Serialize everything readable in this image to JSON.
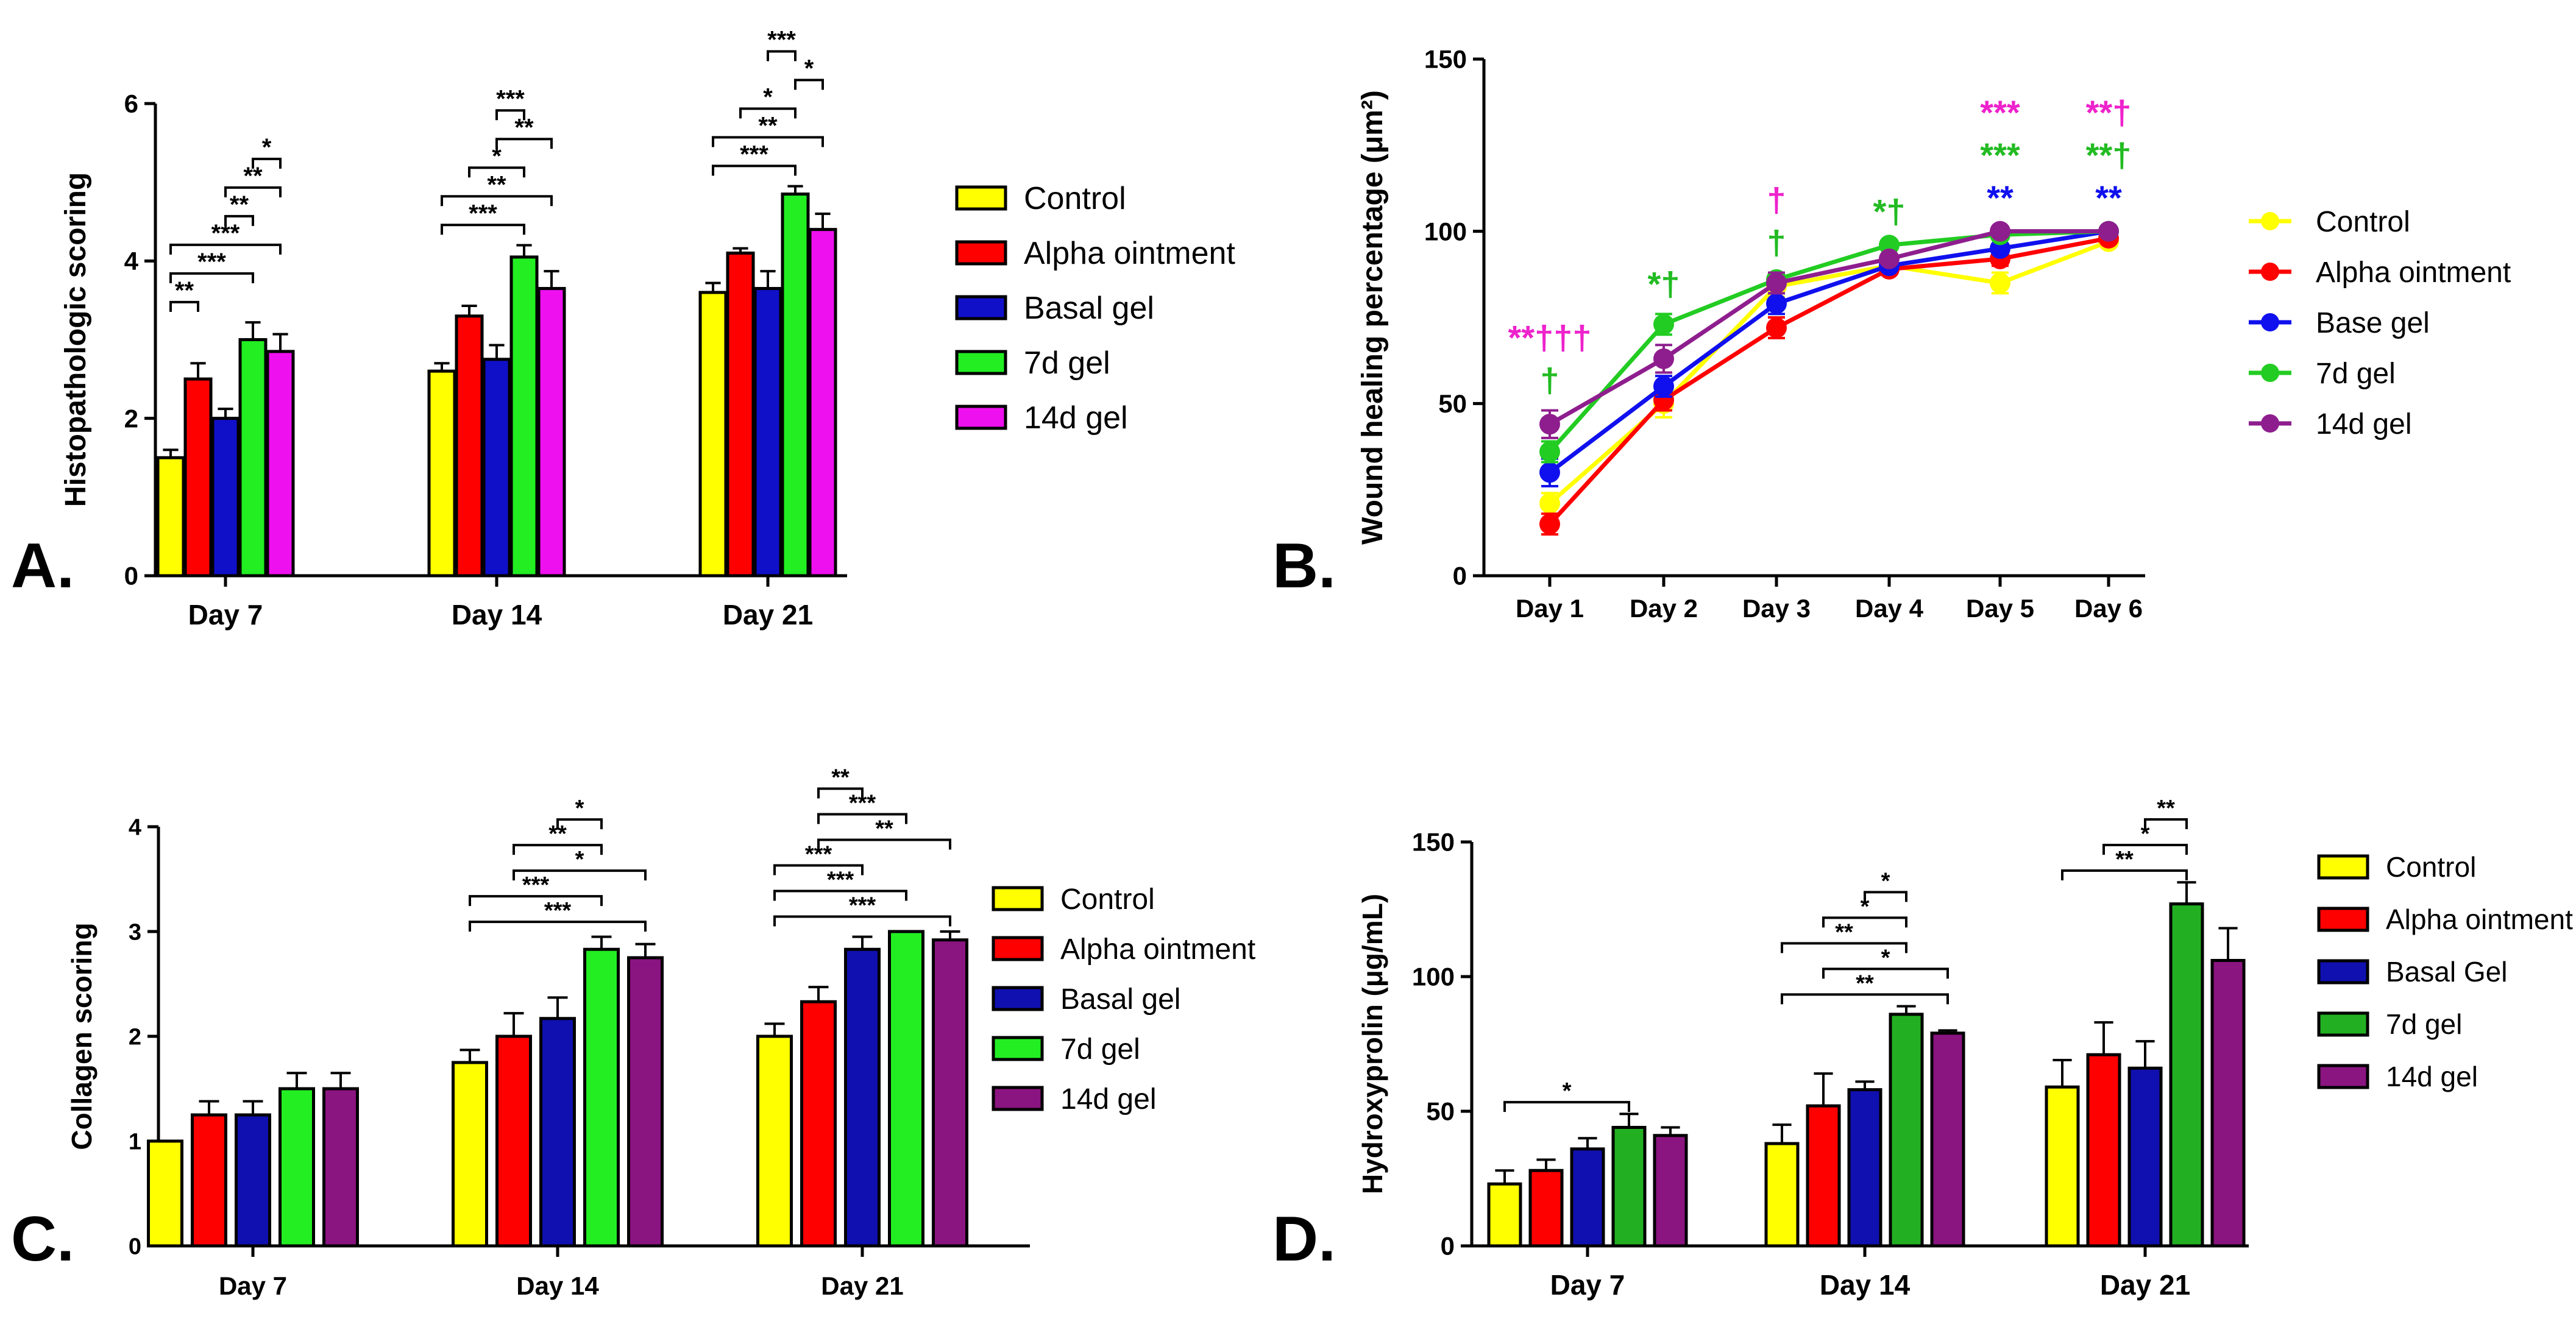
{
  "panel_labels": [
    "A.",
    "B.",
    "C.",
    "D."
  ],
  "chart_data": [
    {
      "type": "bar",
      "title": "",
      "xlabel": "",
      "ylabel": "Histopathologic scoring",
      "ylim": [
        0,
        6
      ],
      "yticks": [
        0,
        2,
        4,
        6
      ],
      "categories": [
        "Day 7",
        "Day 14",
        "Day 21"
      ],
      "series": [
        {
          "name": "Control",
          "color": "#FFFF00",
          "values": [
            1.5,
            2.6,
            3.6
          ],
          "errors": [
            0.1,
            0.1,
            0.12
          ]
        },
        {
          "name": "Alpha ointment",
          "color": "#FF0000",
          "values": [
            2.5,
            3.3,
            4.1
          ],
          "errors": [
            0.2,
            0.13,
            0.06
          ]
        },
        {
          "name": "Basal gel",
          "color": "#1010C8",
          "values": [
            2.0,
            2.75,
            3.65
          ],
          "errors": [
            0.12,
            0.18,
            0.22
          ]
        },
        {
          "name": "7d gel",
          "color": "#22EE22",
          "values": [
            3.0,
            4.05,
            4.85
          ],
          "errors": [
            0.22,
            0.15,
            0.1
          ]
        },
        {
          "name": "14d gel",
          "color": "#EE10EE",
          "values": [
            2.85,
            3.65,
            4.4
          ],
          "errors": [
            0.22,
            0.22,
            0.2
          ]
        }
      ],
      "significance": [
        {
          "group": 0,
          "from": 0,
          "to": 1,
          "label": "**"
        },
        {
          "group": 0,
          "from": 0,
          "to": 3,
          "label": "***"
        },
        {
          "group": 0,
          "from": 0,
          "to": 4,
          "label": "***"
        },
        {
          "group": 0,
          "from": 2,
          "to": 3,
          "label": "**"
        },
        {
          "group": 0,
          "from": 2,
          "to": 4,
          "label": "**"
        },
        {
          "group": 0,
          "from": 3,
          "to": 4,
          "label": "*"
        },
        {
          "group": 1,
          "from": 0,
          "to": 3,
          "label": "***"
        },
        {
          "group": 1,
          "from": 0,
          "to": 4,
          "label": "**"
        },
        {
          "group": 1,
          "from": 1,
          "to": 3,
          "label": "*"
        },
        {
          "group": 1,
          "from": 2,
          "to": 4,
          "label": "**"
        },
        {
          "group": 1,
          "from": 2,
          "to": 3,
          "label": "***"
        },
        {
          "group": 2,
          "from": 0,
          "to": 3,
          "label": "***"
        },
        {
          "group": 2,
          "from": 0,
          "to": 4,
          "label": "**"
        },
        {
          "group": 2,
          "from": 1,
          "to": 3,
          "label": "*"
        },
        {
          "group": 2,
          "from": 3,
          "to": 4,
          "label": "*"
        },
        {
          "group": 2,
          "from": 2,
          "to": 3,
          "label": "***"
        }
      ]
    },
    {
      "type": "line",
      "title": "",
      "xlabel": "",
      "ylabel": "Wound healing percentage (μm²)",
      "ylim": [
        0,
        150
      ],
      "yticks": [
        0,
        50,
        100,
        150
      ],
      "x": [
        "Day 1",
        "Day 2",
        "Day 3",
        "Day 4",
        "Day 5",
        "Day 6"
      ],
      "series": [
        {
          "name": "Control",
          "color": "#FFFF00",
          "values": [
            21,
            50,
            84,
            90,
            85,
            97
          ],
          "errors": [
            3,
            4,
            3,
            2,
            3,
            1
          ]
        },
        {
          "name": "Alpha ointment",
          "color": "#FF0000",
          "values": [
            15,
            51,
            72,
            89,
            92,
            98
          ],
          "errors": [
            3,
            3,
            3,
            1,
            2,
            1
          ]
        },
        {
          "name": "Base gel",
          "color": "#1010EE",
          "values": [
            30,
            55,
            79,
            90,
            95,
            100
          ],
          "errors": [
            4,
            3,
            3,
            1,
            1,
            1
          ]
        },
        {
          "name": "7d gel",
          "color": "#22CC22",
          "values": [
            36,
            73,
            86,
            96,
            99,
            100
          ],
          "errors": [
            3,
            3,
            2,
            1,
            1,
            1
          ]
        },
        {
          "name": "14d gel",
          "color": "#8E1E8E",
          "values": [
            44,
            63,
            85,
            92,
            100,
            100
          ],
          "errors": [
            4,
            4,
            3,
            1,
            1,
            1
          ]
        }
      ],
      "annotations": [
        {
          "x": "Day 1",
          "lines": [
            {
              "text": "**†††",
              "color": "#EE22CC"
            },
            {
              "text": "†",
              "color": "#22BB22"
            }
          ]
        },
        {
          "x": "Day 2",
          "lines": [
            {
              "text": "*†",
              "color": "#22BB22"
            }
          ]
        },
        {
          "x": "Day 3",
          "lines": [
            {
              "text": "†",
              "color": "#EE22CC"
            },
            {
              "text": "†",
              "color": "#22BB22"
            }
          ]
        },
        {
          "x": "Day 4",
          "lines": [
            {
              "text": "*†",
              "color": "#22BB22"
            }
          ]
        },
        {
          "x": "Day 5",
          "lines": [
            {
              "text": "***",
              "color": "#EE22CC"
            },
            {
              "text": "***",
              "color": "#22BB22"
            },
            {
              "text": "**",
              "color": "#1010EE"
            }
          ]
        },
        {
          "x": "Day 6",
          "lines": [
            {
              "text": "**†",
              "color": "#EE22CC"
            },
            {
              "text": "**†",
              "color": "#22BB22"
            },
            {
              "text": "**",
              "color": "#1010EE"
            }
          ]
        }
      ]
    },
    {
      "type": "bar",
      "title": "",
      "xlabel": "",
      "ylabel": "Collagen scoring",
      "ylim": [
        0,
        4
      ],
      "yticks": [
        0,
        1,
        2,
        3,
        4
      ],
      "categories": [
        "Day 7",
        "Day 14",
        "Day 21"
      ],
      "series": [
        {
          "name": "Control",
          "color": "#FFFF00",
          "values": [
            1.0,
            1.75,
            2.0
          ],
          "errors": [
            0,
            0.12,
            0.12
          ]
        },
        {
          "name": "Alpha ointment",
          "color": "#FF0000",
          "values": [
            1.25,
            2.0,
            2.33
          ],
          "errors": [
            0.13,
            0.22,
            0.14
          ]
        },
        {
          "name": "Basal gel",
          "color": "#1010B0",
          "values": [
            1.25,
            2.17,
            2.83
          ],
          "errors": [
            0.13,
            0.2,
            0.12
          ]
        },
        {
          "name": "7d gel",
          "color": "#22EE22",
          "values": [
            1.5,
            2.83,
            3.0
          ],
          "errors": [
            0.15,
            0.12,
            0
          ]
        },
        {
          "name": "14d gel",
          "color": "#8A1480",
          "values": [
            1.5,
            2.75,
            2.92
          ],
          "errors": [
            0.15,
            0.13,
            0.08
          ]
        }
      ],
      "significance": [
        {
          "group": 1,
          "from": 0,
          "to": 4,
          "label": "***"
        },
        {
          "group": 1,
          "from": 0,
          "to": 3,
          "label": "***"
        },
        {
          "group": 1,
          "from": 1,
          "to": 4,
          "label": "*"
        },
        {
          "group": 1,
          "from": 1,
          "to": 3,
          "label": "**"
        },
        {
          "group": 1,
          "from": 2,
          "to": 3,
          "label": "*"
        },
        {
          "group": 2,
          "from": 0,
          "to": 4,
          "label": "***"
        },
        {
          "group": 2,
          "from": 0,
          "to": 3,
          "label": "***"
        },
        {
          "group": 2,
          "from": 0,
          "to": 2,
          "label": "***"
        },
        {
          "group": 2,
          "from": 1,
          "to": 4,
          "label": "**"
        },
        {
          "group": 2,
          "from": 1,
          "to": 3,
          "label": "***"
        },
        {
          "group": 2,
          "from": 1,
          "to": 2,
          "label": "**"
        }
      ]
    },
    {
      "type": "bar",
      "title": "",
      "xlabel": "",
      "ylabel": "Hydroxyprolin (μg/mL)",
      "ylim": [
        0,
        150
      ],
      "yticks": [
        0,
        50,
        100,
        150
      ],
      "categories": [
        "Day 7",
        "Day 14",
        "Day 21"
      ],
      "series": [
        {
          "name": "Control",
          "color": "#FFFF00",
          "values": [
            23,
            38,
            59
          ],
          "errors": [
            5,
            7,
            10
          ]
        },
        {
          "name": "Alpha ointment",
          "color": "#FF0000",
          "values": [
            28,
            52,
            71
          ],
          "errors": [
            4,
            12,
            12
          ]
        },
        {
          "name": "Basal Gel",
          "color": "#1010B0",
          "values": [
            36,
            58,
            66
          ],
          "errors": [
            4,
            3,
            10
          ]
        },
        {
          "name": "7d gel",
          "color": "#22B022",
          "values": [
            44,
            86,
            127
          ],
          "errors": [
            5,
            3,
            8
          ]
        },
        {
          "name": "14d gel",
          "color": "#8A1480",
          "values": [
            41,
            79,
            106
          ],
          "errors": [
            3,
            1,
            12
          ]
        }
      ],
      "significance": [
        {
          "group": 0,
          "from": 0,
          "to": 3,
          "label": "*"
        },
        {
          "group": 1,
          "from": 0,
          "to": 4,
          "label": "**"
        },
        {
          "group": 1,
          "from": 1,
          "to": 4,
          "label": "*"
        },
        {
          "group": 1,
          "from": 0,
          "to": 3,
          "label": "**"
        },
        {
          "group": 1,
          "from": 1,
          "to": 3,
          "label": "*"
        },
        {
          "group": 1,
          "from": 2,
          "to": 3,
          "label": "*"
        },
        {
          "group": 2,
          "from": 0,
          "to": 3,
          "label": "**"
        },
        {
          "group": 2,
          "from": 1,
          "to": 3,
          "label": "*"
        },
        {
          "group": 2,
          "from": 2,
          "to": 3,
          "label": "**"
        }
      ]
    }
  ]
}
